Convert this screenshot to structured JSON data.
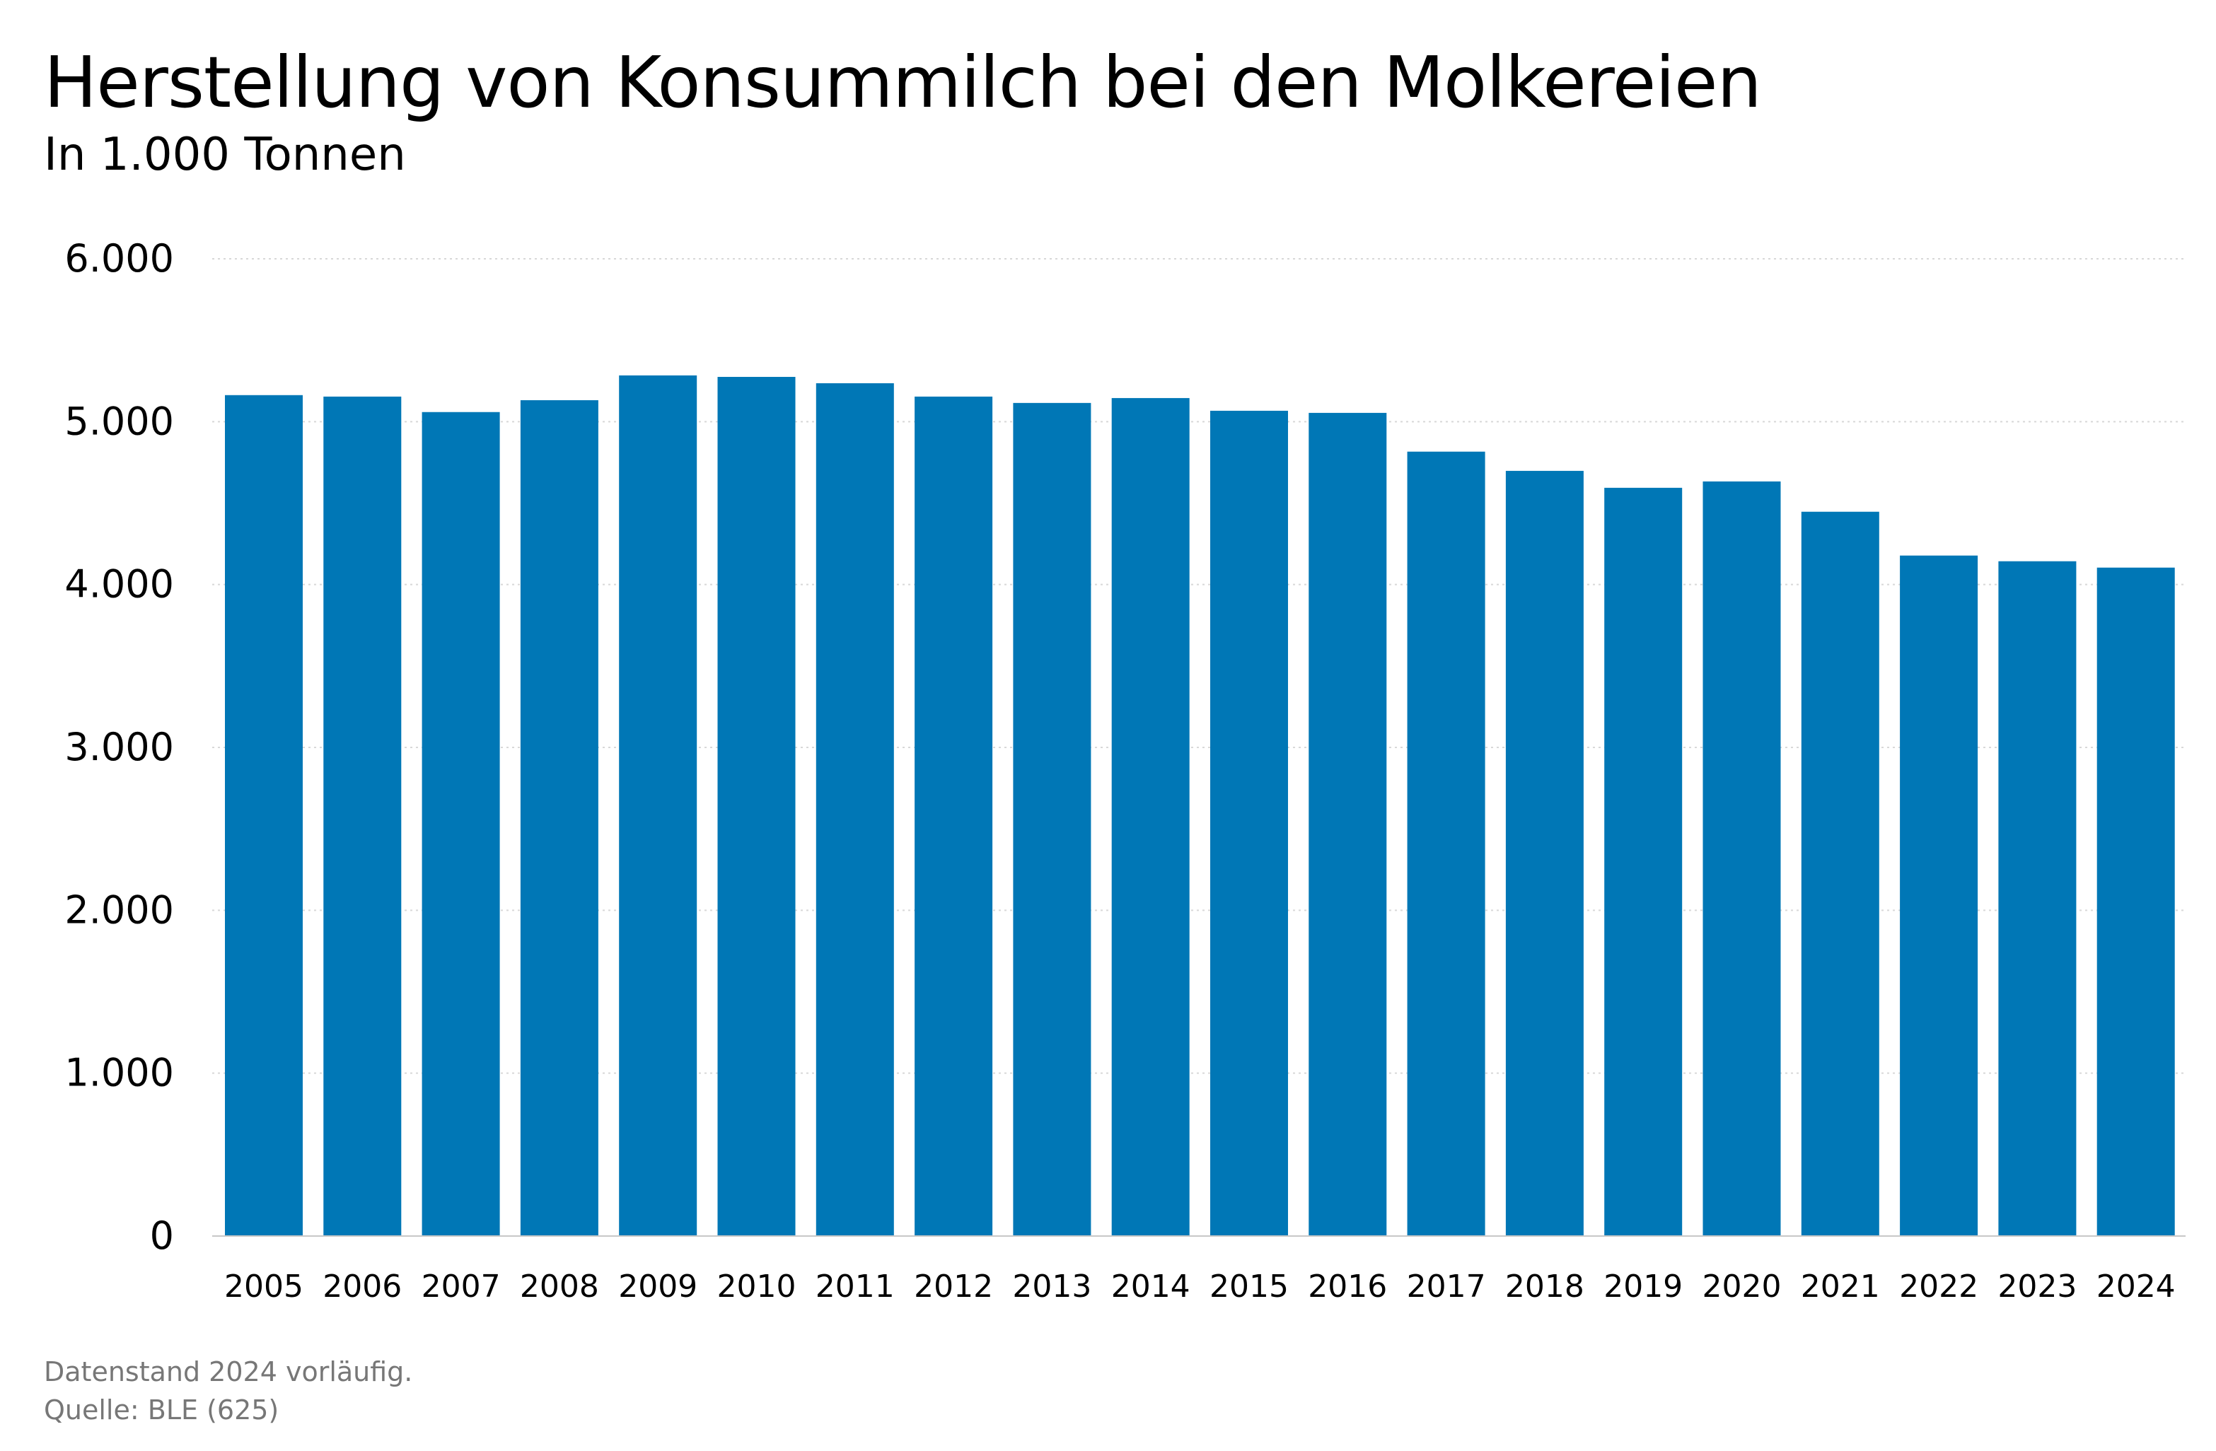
{
  "chart_data": {
    "type": "bar",
    "title": "Herstellung von Konsummilch bei den Molkereien",
    "subtitle": "In 1.000 Tonnen",
    "categories": [
      "2005",
      "2006",
      "2007",
      "2008",
      "2009",
      "2010",
      "2011",
      "2012",
      "2013",
      "2014",
      "2015",
      "2016",
      "2017",
      "2018",
      "2019",
      "2020",
      "2021",
      "2022",
      "2023",
      "2024"
    ],
    "values": [
      5163,
      5154,
      5059,
      5132,
      5284,
      5275,
      5236,
      5154,
      5115,
      5145,
      5067,
      5054,
      4816,
      4698,
      4594,
      4633,
      4447,
      4178,
      4143,
      4104
    ],
    "xlabel": "",
    "ylabel": "",
    "ylim": [
      0,
      6000
    ],
    "yticks": [
      0,
      1000,
      2000,
      3000,
      4000,
      5000,
      6000
    ],
    "ytick_labels": [
      "0",
      "1.000",
      "2.000",
      "3.000",
      "4.000",
      "5.000",
      "6.000"
    ],
    "grid": "horizontal dotted",
    "bar_color": "#0077b6",
    "footnotes": [
      "Datenstand 2024 vorläufig.",
      "Quelle: BLE (625)"
    ]
  }
}
